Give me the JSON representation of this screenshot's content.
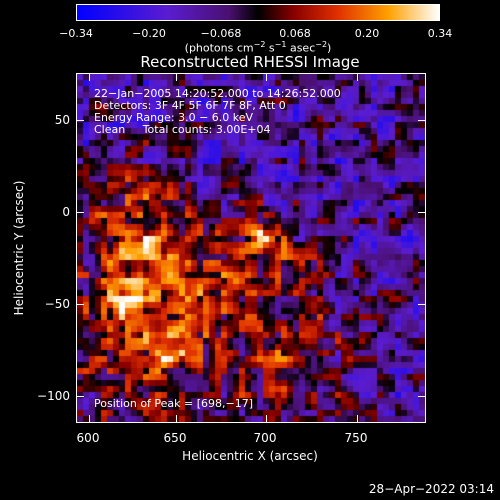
{
  "colorbar": {
    "tick_labels": [
      "−0.34",
      "−0.20",
      "−0.068",
      "0.068",
      "0.20",
      "0.34"
    ],
    "units_prefix": "(photons cm",
    "units_exp1": "−2",
    "units_mid1": " s",
    "units_exp2": "−1",
    "units_mid2": " asec",
    "units_exp3": "−2",
    "units_suffix": ")"
  },
  "title": "Reconstructed RHESSI Image",
  "annotations": {
    "time_range": "22−Jan−2005 14:20:52.000 to 14:26:52.000",
    "detectors": "Detectors: 3F 4F 5F 6F 7F 8F, Att 0",
    "energy": "Energy Range: 3.0 − 6.0 keV",
    "clean": "Clean     Total counts: 3.00E+04",
    "peak": "Position of Peak = [698,−17]"
  },
  "axes": {
    "x_ticks": [
      "600",
      "650",
      "700",
      "750"
    ],
    "y_ticks": [
      "50",
      "0",
      "−50",
      "−100"
    ],
    "xlabel": "Heliocentric X (arcsec)",
    "ylabel": "Heliocentric Y (arcsec)"
  },
  "date_stamp": "28−Apr−2022 03:14",
  "chart_data": {
    "type": "heatmap",
    "title": "Reconstructed RHESSI Image",
    "xlabel": "Heliocentric X (arcsec)",
    "ylabel": "Heliocentric Y (arcsec)",
    "xlim": [
      595,
      785
    ],
    "ylim": [
      -116,
      74
    ],
    "colorbar_range": [
      -0.34,
      0.34
    ],
    "peak": {
      "x": 698,
      "y": -17
    },
    "bright_regions": [
      {
        "x": 698,
        "y": -17,
        "level": 0.34
      },
      {
        "x": 643,
        "y": -78,
        "level": 0.28
      },
      {
        "x": 622,
        "y": -50,
        "level": 0.22
      },
      {
        "x": 714,
        "y": -82,
        "level": 0.18
      }
    ]
  }
}
